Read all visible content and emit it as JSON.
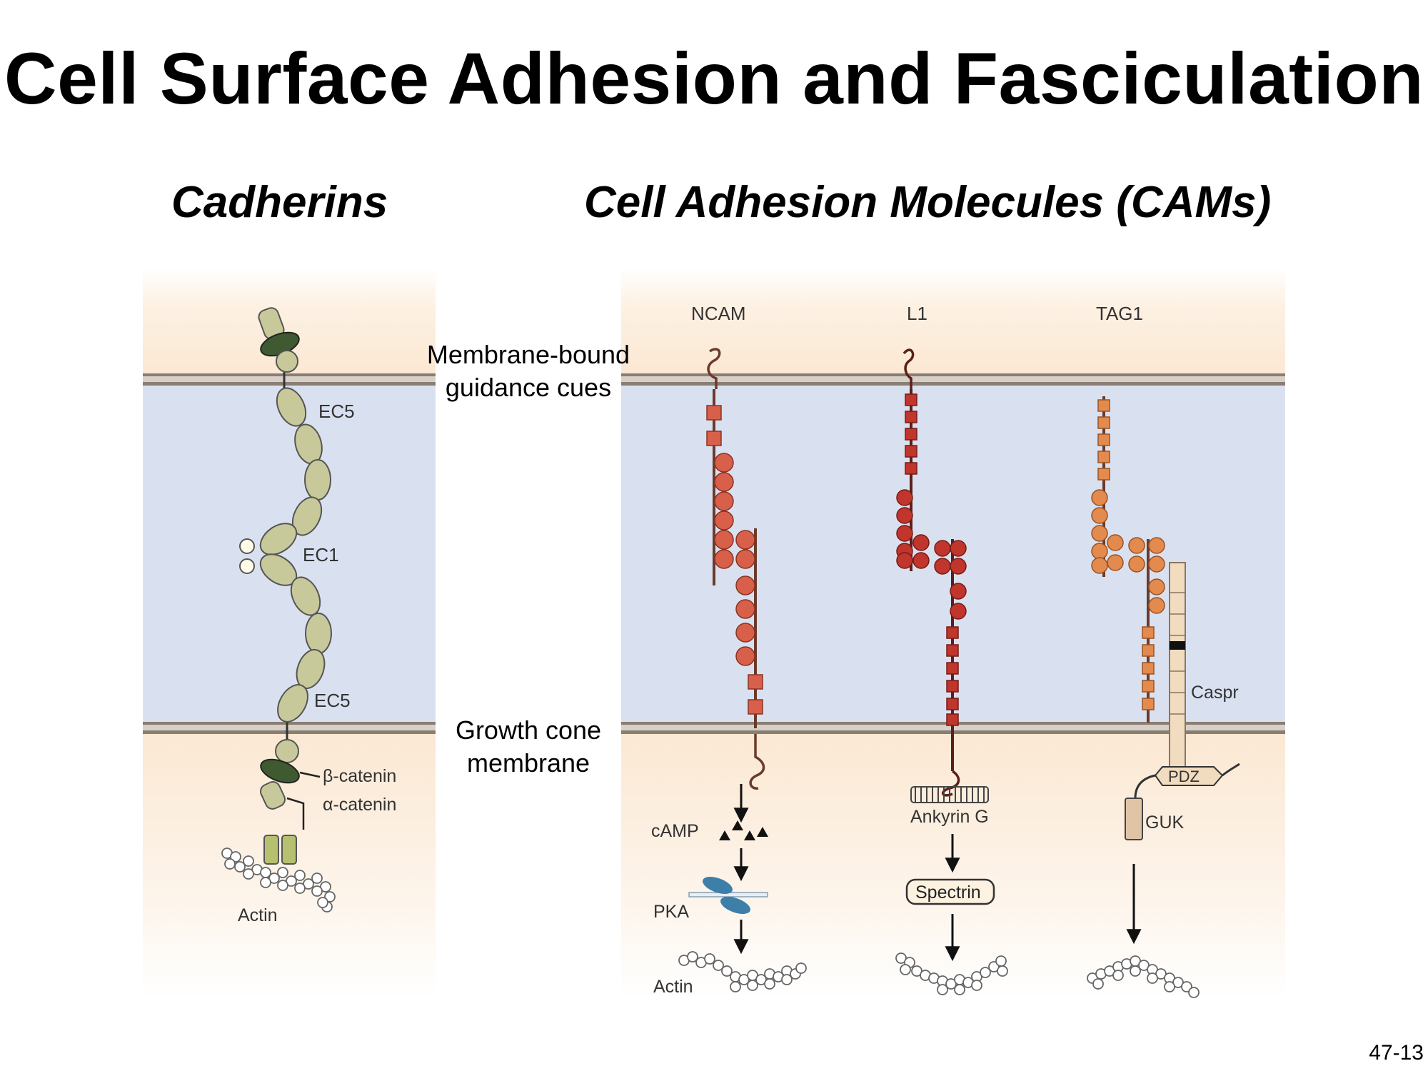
{
  "slide": {
    "title": "Cell Surface Adhesion and Fasciculation",
    "number": "47-13"
  },
  "sections": {
    "left_title": "Cadherins",
    "right_title": "Cell Adhesion Molecules (CAMs)"
  },
  "labels": {
    "membrane_bound_line1": "Membrane-bound",
    "membrane_bound_line2": "guidance cues",
    "growth_cone_line1": "Growth cone",
    "growth_cone_line2": "membrane"
  },
  "cadherin_panel": {
    "ec5_top": "EC5",
    "ec1": "EC1",
    "ec5_bottom": "EC5",
    "beta_catenin": "β-catenin",
    "alpha_catenin": "α-catenin",
    "actin": "Actin"
  },
  "cam_panel": {
    "ncam": "NCAM",
    "l1": "L1",
    "tag1": "TAG1",
    "camp": "cAMP",
    "pka": "PKA",
    "actin": "Actin",
    "ankyrin": "Ankyrin G",
    "spectrin": "Spectrin",
    "caspr": "Caspr",
    "pdz": "PDZ",
    "guk": "GUK"
  },
  "colors": {
    "extracellular_bg": "#fdf1e3",
    "cleft_bg": "#d9e1f1",
    "membrane": "#8a7d72",
    "cadherin_domain": "#c7c99a",
    "catenin_dark": "#3f5a30",
    "ncam": "#d8604a",
    "l1": "#c0352c",
    "tag1": "#e38a4e",
    "caspr": "#f2dcc0",
    "pka": "#3d7fa8"
  }
}
